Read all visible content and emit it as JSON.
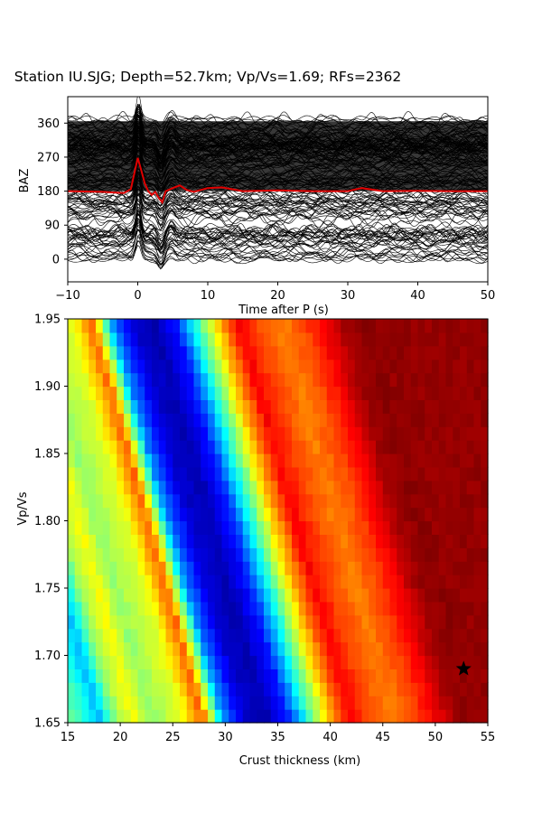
{
  "title": "Station IU.SJG; Depth=52.7km; Vp/Vs=1.69; RFs=2362",
  "colors": {
    "mean_trace": "#e00000",
    "traces": "#000000",
    "marker": "#000000",
    "colormap": "jet"
  },
  "chart_data": [
    {
      "type": "line",
      "panel": "receiver-functions",
      "xlabel": "Time after P (s)",
      "ylabel": "BAZ",
      "xlim": [
        -10,
        50
      ],
      "ylim": [
        -60,
        430
      ],
      "xticks": [
        "−10",
        "0",
        "10",
        "20",
        "30",
        "40",
        "50"
      ],
      "yticks": [
        "0",
        "90",
        "180",
        "270",
        "360"
      ],
      "trace_count": 2362,
      "series": [
        {
          "x": [
            -10,
            -5,
            -2,
            -1,
            0,
            0.5,
            1,
            1.5,
            2,
            2.5,
            3,
            3.5,
            4,
            5,
            6,
            7,
            8,
            10,
            12,
            15,
            20,
            25,
            30,
            32,
            35,
            40,
            45,
            50
          ],
          "y": [
            180,
            178,
            175,
            185,
            268,
            235,
            200,
            180,
            170,
            178,
            162,
            150,
            180,
            188,
            195,
            183,
            178,
            188,
            190,
            180,
            182,
            180,
            180,
            188,
            180,
            181,
            180,
            180
          ]
        }
      ]
    },
    {
      "type": "heatmap",
      "panel": "h-kappa-stack",
      "xlabel": "Crust thickness (km)",
      "ylabel": "Vp/Vs",
      "xlim": [
        15,
        55
      ],
      "ylim": [
        1.65,
        1.95
      ],
      "xticks": [
        "15",
        "20",
        "25",
        "30",
        "35",
        "40",
        "45",
        "50",
        "55"
      ],
      "yticks": [
        "1.65",
        "1.70",
        "1.75",
        "1.80",
        "1.85",
        "1.90",
        "1.95"
      ],
      "colormap": "jet",
      "best_fit": {
        "thickness": 52.7,
        "vpvs": 1.69
      },
      "value_profile_at_vpvs_1.65": {
        "thickness": [
          15,
          17,
          18,
          20,
          21.5,
          23,
          24.5,
          26,
          28,
          30,
          32,
          34,
          36,
          38,
          40,
          42,
          44,
          46,
          48,
          50,
          52,
          54,
          55
        ],
        "value": [
          0.5,
          0.4,
          0.3,
          0.55,
          0.62,
          0.52,
          0.56,
          0.6,
          0.78,
          0.25,
          0.08,
          0.05,
          0.15,
          0.42,
          0.68,
          0.88,
          0.8,
          0.75,
          0.8,
          0.88,
          0.97,
          0.99,
          0.98
        ]
      }
    }
  ]
}
